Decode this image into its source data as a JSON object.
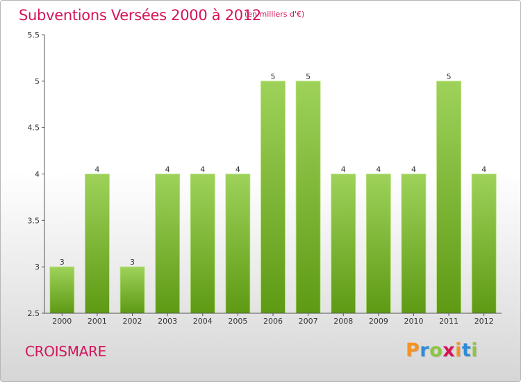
{
  "title": "Subventions Versées 2000 à 2012",
  "subtitle": "(en milliers d'€)",
  "place_name": "CROISMARE",
  "logo": {
    "letters": [
      "P",
      "r",
      "o",
      "x",
      "i",
      "t",
      "i"
    ],
    "colors": [
      "#f7931e",
      "#2e8bd8",
      "#8cc63f",
      "#d4145a",
      "#f7931e",
      "#2e8bd8",
      "#8cc63f"
    ]
  },
  "colors": {
    "bar_top": "#9ed25a",
    "bar_bottom": "#5e9a14",
    "axis_text": "#333333",
    "accent": "#d4145a"
  },
  "chart_data": {
    "type": "bar",
    "categories": [
      "2000",
      "2001",
      "2002",
      "2003",
      "2004",
      "2005",
      "2006",
      "2007",
      "2008",
      "2009",
      "2010",
      "2011",
      "2012"
    ],
    "values": [
      3,
      4,
      3,
      4,
      4,
      4,
      5,
      5,
      4,
      4,
      4,
      5,
      4
    ],
    "data_labels": [
      "3",
      "4",
      "3",
      "4",
      "4",
      "4",
      "5",
      "5",
      "4",
      "4",
      "4",
      "5",
      "4"
    ],
    "y_ticks": [
      "2.5",
      "3",
      "3.5",
      "4",
      "4.5",
      "5",
      "5.5"
    ],
    "ylim": [
      2.5,
      5.5
    ],
    "grid": false,
    "legend": "none"
  }
}
